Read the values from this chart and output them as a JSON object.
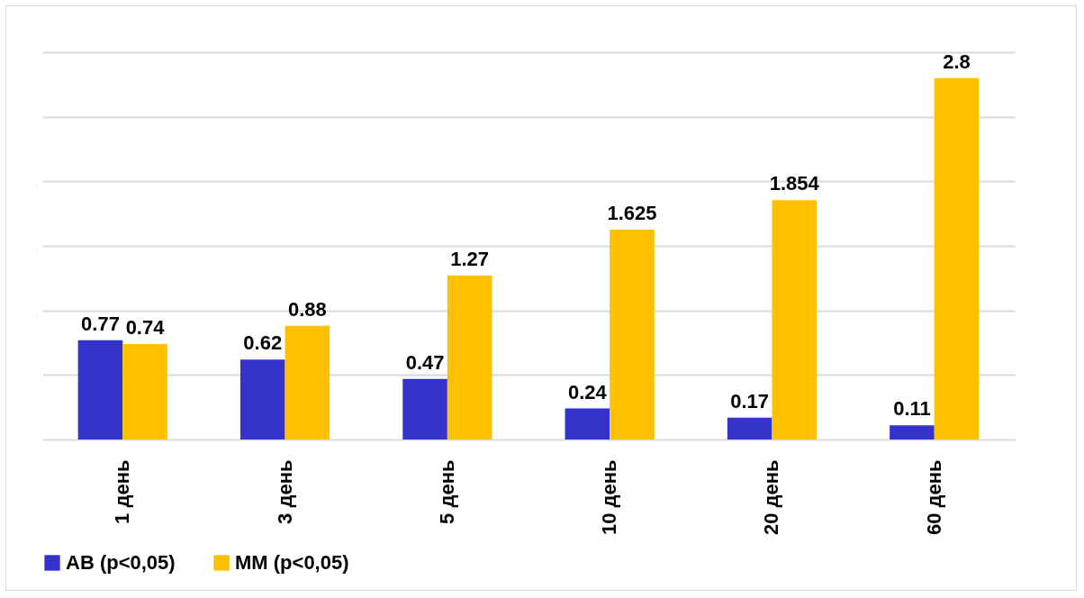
{
  "chart_data": {
    "type": "bar",
    "categories": [
      "1 день",
      "3 день",
      "5 день",
      "10 день",
      "20 день",
      "60 день"
    ],
    "series": [
      {
        "name": "АВ (p<0,05)",
        "color": "#3333cc",
        "values": [
          0.77,
          0.62,
          0.47,
          0.24,
          0.17,
          0.11
        ]
      },
      {
        "name": "ММ (p<0,05)",
        "color": "#ffc000",
        "values": [
          0.74,
          0.88,
          1.27,
          1.625,
          1.854,
          2.8
        ]
      }
    ],
    "ylim": [
      0,
      3
    ],
    "yticks": [
      {
        "value": 0,
        "label": null
      },
      {
        "value": 0.5,
        "label": null
      },
      {
        "value": 1,
        "label": null
      },
      {
        "value": 1.5,
        "label": null
      },
      {
        "value": 2,
        "label": null
      },
      {
        "value": 2.5,
        "label": null
      },
      {
        "value": 3,
        "label": null
      }
    ],
    "tick_labels": "x",
    "grid": "y",
    "data_labels": true,
    "legend": "bottom"
  }
}
